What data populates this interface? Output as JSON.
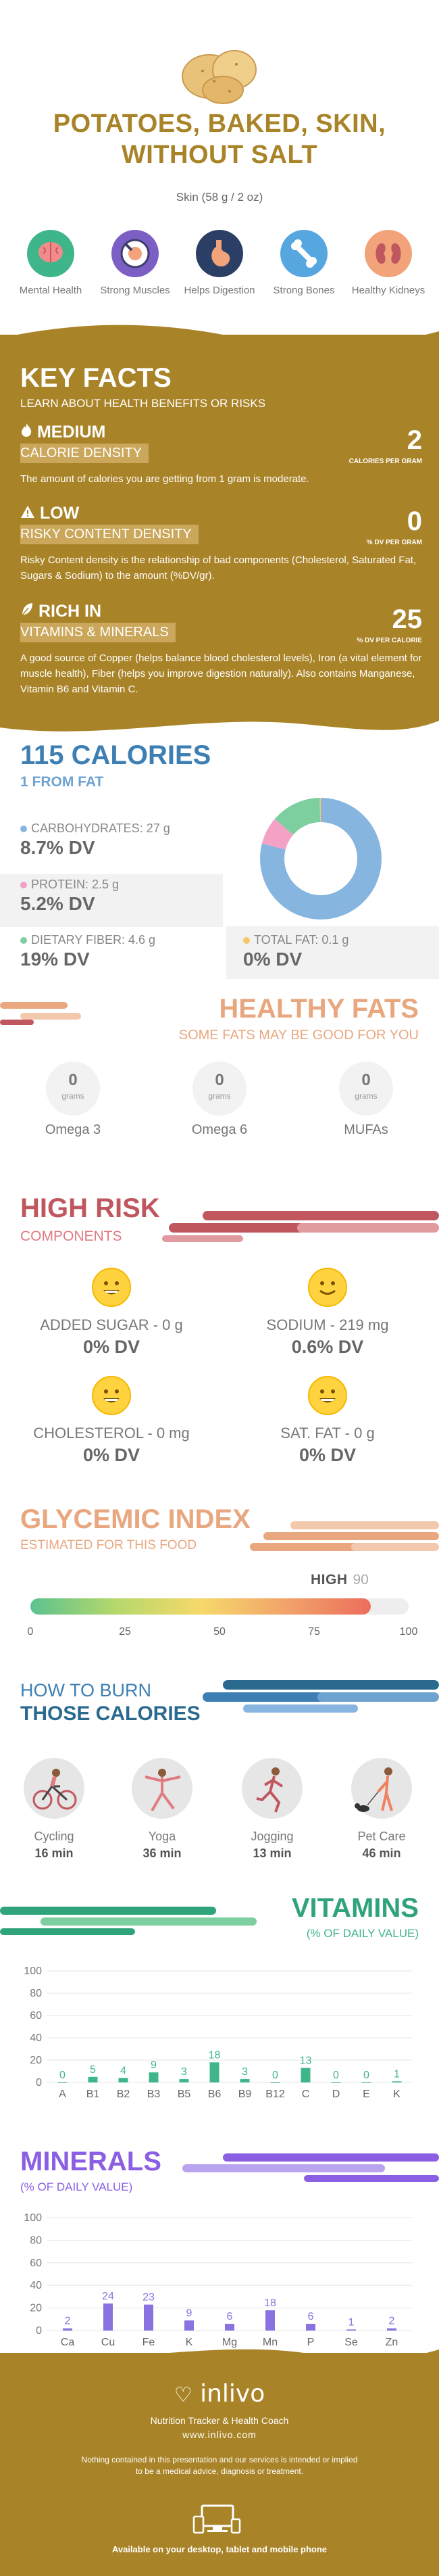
{
  "header": {
    "title": "POTATOES, BAKED, SKIN, WITHOUT SALT",
    "serving": "Skin (58 g / 2 oz)",
    "benefits": [
      {
        "icon": "brain-icon",
        "label": "Mental Health",
        "color": "#3fb58a"
      },
      {
        "icon": "muscle-icon",
        "label": "Strong Muscles",
        "color": "#7b5fc4"
      },
      {
        "icon": "stomach-icon",
        "label": "Helps Digestion",
        "color": "#2b3f66"
      },
      {
        "icon": "bone-icon",
        "label": "Strong Bones",
        "color": "#56a7e0"
      },
      {
        "icon": "kidney-icon",
        "label": "Healthy Kidneys",
        "color": "#f2a37a"
      }
    ]
  },
  "key_facts": {
    "title": "KEY FACTS",
    "subtitle": "LEARN ABOUT HEALTH BENEFITS OR RISKS",
    "items": [
      {
        "icon": "flame-icon",
        "level": "MEDIUM",
        "name": "CALORIE DENSITY",
        "value": "2",
        "unit": "CALORIES PER GRAM",
        "description": "The amount of calories you are getting from 1 gram is moderate."
      },
      {
        "icon": "warning-icon",
        "level": "LOW",
        "name": "RISKY CONTENT DENSITY",
        "value": "0",
        "unit": "% DV PER GRAM",
        "description": "Risky Content density is the relationship of bad components (Cholesterol, Saturated Fat, Sugars & Sodium) to the amount (%DV/gr)."
      },
      {
        "icon": "leaf-icon",
        "level": "RICH  IN",
        "name": "VITAMINS & MINERALS",
        "value": "25",
        "unit": "% DV PER CALORIE",
        "description": "A good source of Copper (helps balance blood cholesterol levels), Iron (a vital element for muscle health), Fiber (helps you improve digestion naturally). Also contains Manganese, Vitamin B6 and Vitamin C."
      }
    ]
  },
  "calories": {
    "title": "115 CALORIES",
    "subtitle": "1 FROM FAT",
    "macros": [
      {
        "label": "CARBOHYDRATES: 27 g",
        "dv": "8.7% DV",
        "color": "#86b6e0"
      },
      {
        "label": "PROTEIN: 2.5 g",
        "dv": "5.2% DV",
        "color": "#f4a1c6"
      },
      {
        "label": "DIETARY FIBER: 4.6 g",
        "dv": "19% DV",
        "color": "#7ecf9f"
      },
      {
        "label": "TOTAL FAT: 0.1 g",
        "dv": "0% DV",
        "color": "#f5c865"
      }
    ],
    "donut": [
      {
        "name": "carbohydrates",
        "value": 79,
        "color": "#86b6e0"
      },
      {
        "name": "protein",
        "value": 7.3,
        "color": "#f4a1c6"
      },
      {
        "name": "dietary fiber",
        "value": 13.4,
        "color": "#7ecf9f"
      },
      {
        "name": "fat",
        "value": 0.3,
        "color": "#f5c865"
      }
    ]
  },
  "healthy_fats": {
    "title": "HEALTHY FATS",
    "subtitle": "SOME FATS MAY BE GOOD FOR YOU",
    "items": [
      {
        "value": "0",
        "unit": "grams",
        "name": "Omega 3"
      },
      {
        "value": "0",
        "unit": "grams",
        "name": "Omega 6"
      },
      {
        "value": "0",
        "unit": "grams",
        "name": "MUFAs"
      }
    ]
  },
  "high_risk": {
    "title": "HIGH RISK",
    "subtitle": "COMPONENTS",
    "items": [
      {
        "icon": "smiley-icon",
        "label": "ADDED SUGAR - 0 g",
        "dv": "0% DV"
      },
      {
        "icon": "smiley-icon",
        "label": "SODIUM - 219 mg",
        "dv": "0.6% DV"
      },
      {
        "icon": "smiley-icon",
        "label": "CHOLESTEROL - 0 mg",
        "dv": "0% DV"
      },
      {
        "icon": "smiley-icon",
        "label": "SAT. FAT - 0 g",
        "dv": "0% DV"
      }
    ]
  },
  "glycemic": {
    "title": "GLYCEMIC INDEX",
    "subtitle": "ESTIMATED FOR THIS FOOD",
    "level": "HIGH",
    "value": "90",
    "value_num": 90,
    "ticks": [
      "0",
      "25",
      "50",
      "75",
      "100"
    ]
  },
  "burn": {
    "title_line1": "HOW TO BURN",
    "title_line2": "THOSE CALORIES",
    "activities": [
      {
        "icon": "cycling-icon",
        "name": "Cycling",
        "time": "16 min"
      },
      {
        "icon": "yoga-icon",
        "name": "Yoga",
        "time": "36 min"
      },
      {
        "icon": "jogging-icon",
        "name": "Jogging",
        "time": "13 min"
      },
      {
        "icon": "pet-care-icon",
        "name": "Pet Care",
        "time": "46 min"
      }
    ]
  },
  "vitamins": {
    "title": "VITAMINS",
    "subtitle": "(% OF DAILY VALUE)",
    "chart_data": {
      "type": "bar",
      "categories": [
        "A",
        "B1",
        "B2",
        "B3",
        "B5",
        "B6",
        "B9",
        "B12",
        "C",
        "D",
        "E",
        "K"
      ],
      "values": [
        0,
        5,
        4,
        9,
        3,
        18,
        3,
        0,
        13,
        0,
        0,
        1
      ],
      "ylim": [
        0,
        100
      ],
      "yticks": [
        "0",
        "20",
        "40",
        "60",
        "80",
        "100"
      ],
      "color": "#3fb58a"
    }
  },
  "minerals": {
    "title": "MINERALS",
    "subtitle": "(% OF DAILY VALUE)",
    "chart_data": {
      "type": "bar",
      "categories": [
        "Ca",
        "Cu",
        "Fe",
        "K",
        "Mg",
        "Mn",
        "P",
        "Se",
        "Zn"
      ],
      "values": [
        2,
        24,
        23,
        9,
        6,
        18,
        6,
        1,
        2
      ],
      "ylim": [
        0,
        100
      ],
      "yticks": [
        "0",
        "20",
        "40",
        "60",
        "80",
        "100"
      ],
      "color": "#8a72e0"
    }
  },
  "footer": {
    "logo": "inlivo",
    "tagline": "Nutrition Tracker & Health Coach",
    "url": "www.inlivo.com",
    "disclaimer": "Nothing contained in this presentation and our services is intended or implied to be a medical advice, diagnosis or treatment.",
    "availability": "Available on your desktop, tablet and mobile phone"
  }
}
